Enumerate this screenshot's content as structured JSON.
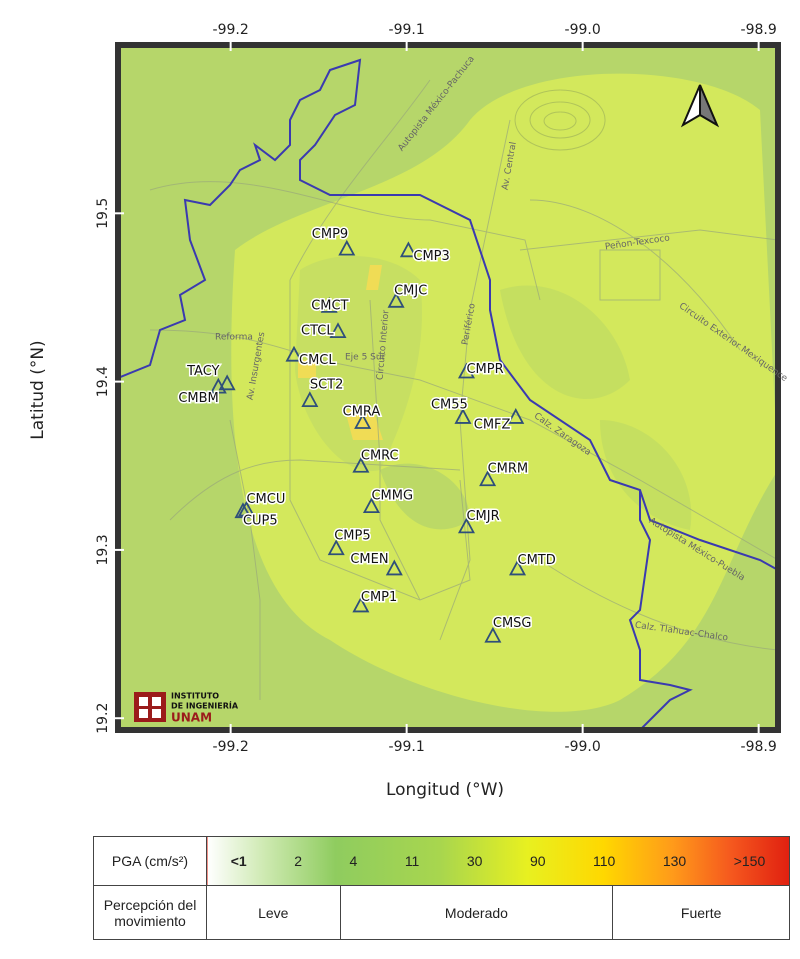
{
  "map": {
    "xlabel": "Longitud (°W)",
    "ylabel": "Latitud (°N)",
    "xlim": [
      -99.264,
      -98.889
    ],
    "ylim": [
      19.193,
      19.6
    ],
    "xticks": [
      -99.2,
      -99.1,
      {
        "value": -99.0,
        "label": "-99.0"
      },
      -98.9
    ],
    "yticks": [
      19.2,
      19.3,
      19.4,
      19.5
    ],
    "stations": [
      {
        "name": "CMP9",
        "lon": -99.134,
        "lat": 19.479
      },
      {
        "name": "CMP3",
        "lon": -99.099,
        "lat": 19.478
      },
      {
        "name": "CMJC",
        "lon": -99.106,
        "lat": 19.448
      },
      {
        "name": "CMCT",
        "lon": -99.144,
        "lat": 19.445
      },
      {
        "name": "CTCL",
        "lon": -99.139,
        "lat": 19.43
      },
      {
        "name": "CMCL",
        "lon": -99.164,
        "lat": 19.416
      },
      {
        "name": "SCT2",
        "lon": -99.155,
        "lat": 19.389
      },
      {
        "name": "TACY",
        "lon": -99.202,
        "lat": 19.399
      },
      {
        "name": "CMBM",
        "lon": -99.207,
        "lat": 19.397
      },
      {
        "name": "CMRA",
        "lon": -99.125,
        "lat": 19.376
      },
      {
        "name": "CM55",
        "lon": -99.068,
        "lat": 19.379
      },
      {
        "name": "CMFZ",
        "lon": -99.038,
        "lat": 19.379
      },
      {
        "name": "CMPR",
        "lon": -99.066,
        "lat": 19.406
      },
      {
        "name": "CMRC",
        "lon": -99.126,
        "lat": 19.35
      },
      {
        "name": "CMRM",
        "lon": -99.054,
        "lat": 19.342
      },
      {
        "name": "CMMG",
        "lon": -99.12,
        "lat": 19.326
      },
      {
        "name": "CMCU",
        "lon": -99.191,
        "lat": 19.324
      },
      {
        "name": "CUP5",
        "lon": -99.193,
        "lat": 19.323
      },
      {
        "name": "CMJR",
        "lon": -99.066,
        "lat": 19.314
      },
      {
        "name": "CMP5",
        "lon": -99.14,
        "lat": 19.301
      },
      {
        "name": "CMEN",
        "lon": -99.107,
        "lat": 19.289
      },
      {
        "name": "CMTD",
        "lon": -99.037,
        "lat": 19.289
      },
      {
        "name": "CMP1",
        "lon": -99.126,
        "lat": 19.267
      },
      {
        "name": "CMSG",
        "lon": -99.051,
        "lat": 19.249
      }
    ],
    "roads": [
      "Autopista México-Pachuca",
      "Av. Central",
      "Peñon-Texcoco",
      "Circuito Exterior Mexiquence",
      "Reforma",
      "Av. Insurgentes",
      "Eje 5 Sur",
      "Circuito Interior",
      "Periférico",
      "Calz. Zaragoza",
      "Autopista México-Puebla",
      "Calz. Tlahuac-Chalco"
    ],
    "logo": [
      "INSTITUTO",
      "DE INGENIERÍA",
      "UNAM"
    ]
  },
  "legend": {
    "pga_label": "PGA (cm/s²)",
    "pga_values": [
      "<1",
      "2",
      "4",
      "11",
      "30",
      "90",
      "110",
      "130",
      ">150"
    ],
    "perception_label": "Percepción del movimiento",
    "perception": [
      "Leve",
      "Moderado",
      "Fuerte"
    ]
  }
}
